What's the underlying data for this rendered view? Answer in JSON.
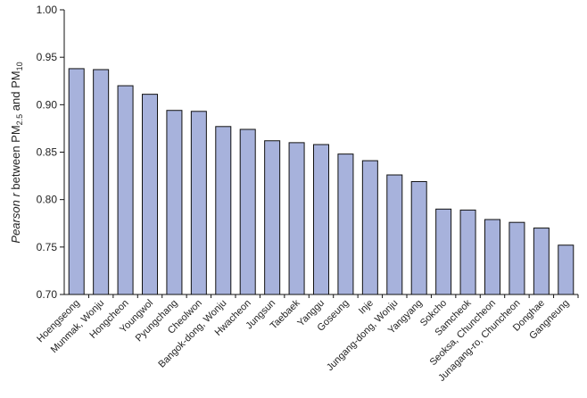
{
  "chart_data": {
    "type": "bar",
    "title": "",
    "xlabel": "",
    "ylabel": {
      "italic": "Pearson r",
      "text": " between PM",
      "sub1": "2.5",
      "mid": " and PM",
      "sub2": "10"
    },
    "ylim": [
      0.7,
      1.0
    ],
    "yticks": [
      "0.70",
      "0.75",
      "0.80",
      "0.85",
      "0.90",
      "0.95",
      "1.00"
    ],
    "grid": false,
    "bar_color": "#a7b2dc",
    "categories": [
      "Hoengseong",
      "Munmak, Wonju",
      "Hongcheon",
      "Youngwol",
      "Pyungchang",
      "Cheolwon",
      "Bangok-dong, Wonju",
      "Hwacheon",
      "Jungsun",
      "Taebaek",
      "Yanggu",
      "Goseung",
      "Inje",
      "Jungang-dong, Wonju",
      "Yangyang",
      "Sokcho",
      "Samcheok",
      "Seoksa, Chuncheon",
      "Junagang-ro, Chuncheon",
      "Donghae",
      "Gangneung"
    ],
    "values": [
      0.938,
      0.937,
      0.92,
      0.911,
      0.894,
      0.893,
      0.877,
      0.874,
      0.862,
      0.86,
      0.858,
      0.848,
      0.841,
      0.826,
      0.819,
      0.79,
      0.789,
      0.779,
      0.776,
      0.77,
      0.752
    ]
  }
}
